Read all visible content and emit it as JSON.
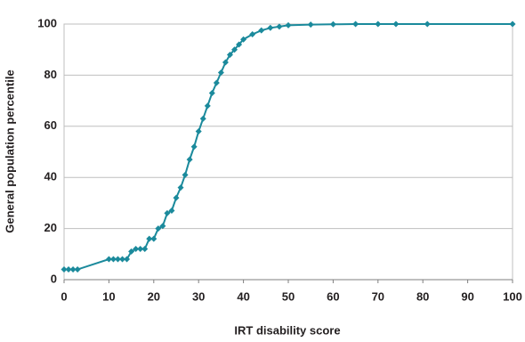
{
  "chart_data": {
    "type": "line",
    "x_label": "IRT disability score",
    "y_label": "General population percentile",
    "x": [
      0,
      1,
      2,
      3,
      10,
      11,
      12,
      13,
      14,
      15,
      16,
      17,
      18,
      19,
      20,
      21,
      22,
      23,
      24,
      25,
      26,
      27,
      28,
      29,
      30,
      31,
      32,
      33,
      34,
      35,
      36,
      37,
      38,
      39,
      40,
      42,
      44,
      46,
      48,
      50,
      55,
      60,
      65,
      70,
      74,
      81,
      100
    ],
    "series": [
      {
        "name": "Percentile",
        "color": "#1b8a9c",
        "values": [
          4,
          4,
          4,
          4,
          8,
          8,
          8,
          8,
          8,
          11,
          12,
          12,
          12,
          16,
          16,
          20,
          21,
          26,
          27,
          32,
          36,
          41,
          47,
          52,
          58,
          63,
          68,
          73,
          77,
          81,
          85,
          88,
          90,
          92,
          94,
          96,
          97.5,
          98.5,
          99,
          99.5,
          99.8,
          99.9,
          100,
          100,
          100,
          100,
          100
        ]
      }
    ],
    "xlim": [
      0,
      100
    ],
    "ylim": [
      0,
      100
    ],
    "xticks": [
      0,
      10,
      20,
      30,
      40,
      50,
      60,
      70,
      80,
      90,
      100
    ],
    "yticks": [
      0,
      20,
      40,
      60,
      80,
      100
    ],
    "grid": true
  }
}
